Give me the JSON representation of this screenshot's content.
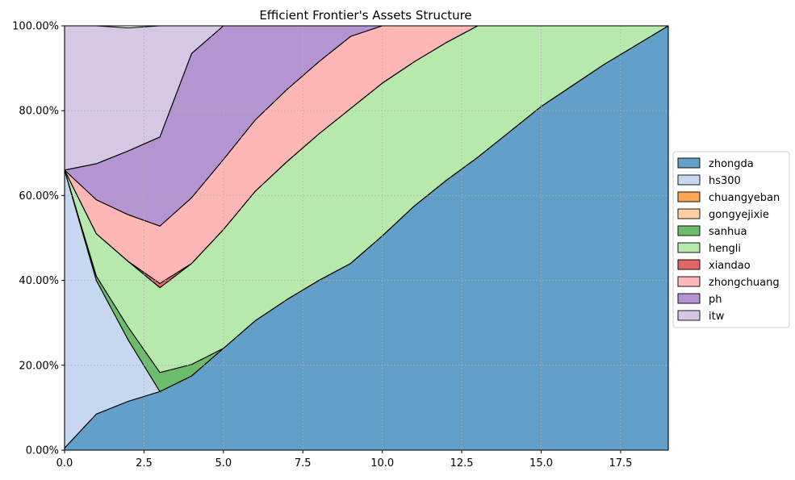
{
  "chart_data": {
    "type": "area",
    "stacked": true,
    "normalized": true,
    "title": "Efficient Frontier's Assets Structure",
    "xlabel": "",
    "ylabel": "",
    "xlim": [
      0,
      19
    ],
    "ylim": [
      0,
      1
    ],
    "xticks": [
      "0.0",
      "2.5",
      "5.0",
      "7.5",
      "10.0",
      "12.5",
      "15.0",
      "17.5"
    ],
    "xtick_values": [
      0,
      2.5,
      5,
      7.5,
      10,
      12.5,
      15,
      17.5
    ],
    "yticks": [
      "0.00%",
      "20.00%",
      "40.00%",
      "60.00%",
      "80.00%",
      "100.00%"
    ],
    "ytick_values": [
      0,
      0.2,
      0.4,
      0.6,
      0.8,
      1.0
    ],
    "grid": true,
    "legend_position": "center-right",
    "x": [
      0,
      1,
      2,
      3,
      4,
      5,
      6,
      7,
      8,
      9,
      10,
      11,
      12,
      13,
      14,
      15,
      16,
      17,
      18,
      19
    ],
    "series": [
      {
        "name": "zhongda",
        "color": "#1f77b4",
        "values": [
          0.005,
          0.085,
          0.115,
          0.138,
          0.175,
          0.24,
          0.305,
          0.355,
          0.4,
          0.44,
          0.505,
          0.575,
          0.635,
          0.69,
          0.75,
          0.81,
          0.86,
          0.91,
          0.955,
          1.0
        ]
      },
      {
        "name": "hs300",
        "color": "#aec7e8",
        "values": [
          0.655,
          0.315,
          0.145,
          0.0,
          0.0,
          0.0,
          0.0,
          0.0,
          0.0,
          0.0,
          0.0,
          0.0,
          0.0,
          0.0,
          0.0,
          0.0,
          0.0,
          0.0,
          0.0,
          0.0
        ]
      },
      {
        "name": "chuangyeban",
        "color": "#ff7f0e",
        "values": [
          0,
          0,
          0,
          0,
          0,
          0,
          0,
          0,
          0,
          0,
          0,
          0,
          0,
          0,
          0,
          0,
          0,
          0,
          0,
          0
        ]
      },
      {
        "name": "gongyejixie",
        "color": "#ffbb78",
        "values": [
          0,
          0,
          0,
          0,
          0,
          0,
          0,
          0,
          0,
          0,
          0,
          0,
          0,
          0,
          0,
          0,
          0,
          0,
          0,
          0
        ]
      },
      {
        "name": "sanhua",
        "color": "#2ca02c",
        "values": [
          0.0,
          0.01,
          0.03,
          0.045,
          0.027,
          0.0,
          0.0,
          0.0,
          0.0,
          0.0,
          0.0,
          0.0,
          0.0,
          0.0,
          0.0,
          0.0,
          0.0,
          0.0,
          0.0,
          0.0
        ]
      },
      {
        "name": "hengli",
        "color": "#98df8a",
        "values": [
          0.0,
          0.1,
          0.155,
          0.2,
          0.238,
          0.28,
          0.305,
          0.325,
          0.345,
          0.365,
          0.36,
          0.34,
          0.325,
          0.31,
          0.25,
          0.19,
          0.14,
          0.09,
          0.045,
          0.0
        ]
      },
      {
        "name": "xiandao",
        "color": "#d62728",
        "values": [
          0.0,
          0.0,
          0.0,
          0.01,
          0.0,
          0.0,
          0.0,
          0.0,
          0.0,
          0.0,
          0.0,
          0.0,
          0.0,
          0.0,
          0.0,
          0.0,
          0.0,
          0.0,
          0.0,
          0.0
        ]
      },
      {
        "name": "zhongchuang",
        "color": "#ff9896",
        "values": [
          0.0,
          0.08,
          0.11,
          0.135,
          0.155,
          0.165,
          0.168,
          0.17,
          0.17,
          0.17,
          0.135,
          0.085,
          0.04,
          0.0,
          0.0,
          0.0,
          0.0,
          0.0,
          0.0,
          0.0
        ]
      },
      {
        "name": "ph",
        "color": "#9467bd",
        "values": [
          0.0,
          0.085,
          0.15,
          0.21,
          0.34,
          0.315,
          0.222,
          0.15,
          0.085,
          0.025,
          0.0,
          0.0,
          0.0,
          0.0,
          0.0,
          0.0,
          0.0,
          0.0,
          0.0,
          0.0
        ]
      },
      {
        "name": "itw",
        "color": "#c5b0d5",
        "values": [
          0.34,
          0.325,
          0.29,
          0.262,
          0.065,
          0.0,
          0.0,
          0.0,
          0.0,
          0.0,
          0.0,
          0.0,
          0.0,
          0.0,
          0.0,
          0.0,
          0.0,
          0.0,
          0.0,
          0.0
        ]
      }
    ]
  }
}
